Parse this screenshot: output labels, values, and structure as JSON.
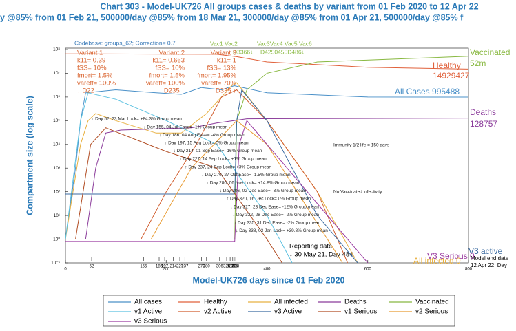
{
  "chart_data": {
    "type": "line",
    "title": "Chart 303 - Model-UK726 All groups cases & deaths by variant from 01 Feb 2020 to 12 Apr 22",
    "subtitle": "y @85% from 01 Feb 21, 500000/day @85% from 18 Mar 21, 300000/day @85% from 01 Apr 21, 500000/day @85% f",
    "x_label": "Model-UK726 days since 01 Feb 2020",
    "y_label": "Compartment size (log scale)",
    "log_y": true,
    "grid": false,
    "xlim": [
      0,
      800
    ],
    "xticks": [
      0,
      200,
      400,
      600,
      800
    ],
    "ylim": [
      0.1,
      100000000
    ],
    "yticks": [
      {
        "value": 0.1,
        "label": "10⁻¹"
      },
      {
        "value": 1,
        "label": "10⁰"
      },
      {
        "value": 10,
        "label": "10¹"
      },
      {
        "value": 100,
        "label": "10²"
      },
      {
        "value": 1000,
        "label": "10³"
      },
      {
        "value": 10000,
        "label": "10⁴"
      },
      {
        "value": 100000,
        "label": "10⁵"
      },
      {
        "value": 1000000,
        "label": "10⁶"
      },
      {
        "value": 10000000,
        "label": "10⁷"
      },
      {
        "value": 100000000,
        "label": "10⁸"
      }
    ],
    "codebase": "Codebase: groups_62; Correction= 0.7",
    "variants": [
      {
        "lines": [
          "Variant 1",
          "k11= 0.39",
          "fSS= 10%",
          "fmort= 1.5%",
          "vareff= 100%",
          "↓ D22"
        ]
      },
      {
        "lines": [
          "Variant 2",
          "k11= 0.663",
          "fSS= 10%",
          "fmort= 1.5%",
          "vareff= 100%",
          "D235 ↓"
        ]
      },
      {
        "lines": [
          "Variant 3",
          "k11= 1",
          "fSS= 13%",
          "fmort= 1.95%",
          "vareff= 70%",
          "D335 ↓"
        ]
      }
    ],
    "vaccine_labels": [
      "Vac1 Vac2",
      "Vac3Vac4 Vac5 Vac6"
    ],
    "vaccine_days": [
      "D3366↓",
      "D4250455D486↓"
    ],
    "events": [
      {
        "day": 52,
        "text": "↑ Day 52, 23 Mar Lock= +84.3% Group mean"
      },
      {
        "day": 155,
        "text": "↓ Day 155, 04 Jul Ease= -1% Group mean"
      },
      {
        "day": 186,
        "text": "↓ Day 186, 04 Aug Ease= -4% Group mean"
      },
      {
        "day": 197,
        "text": "↑ Day 197, 15 Aug Lock= 0% Group mean"
      },
      {
        "day": 214,
        "text": "↓ Day 214, 01 Sep Ease= -16% Group mean"
      },
      {
        "day": 227,
        "text": "↑ Day 227, 14 Sep Lock= +1% Group mean"
      },
      {
        "day": 237,
        "text": "↑ Day 237, 24 Sep Lock= +3% Group mean"
      },
      {
        "day": 270,
        "text": "↓ Day 270, 27 Oct Ease= -1.5% Group mean"
      },
      {
        "day": 280,
        "text": "↑ Day 280, 06 Nov Lock= +14.8% Group mean"
      },
      {
        "day": 306,
        "text": "↓ Day 306, 02 Dec Ease= -3% Group mean"
      },
      {
        "day": 320,
        "text": "↑ Day 320, 16 Dec Lock= 0% Group mean"
      },
      {
        "day": 327,
        "text": "↓ Day 327, 23 Dec Ease= -12% Group mean"
      },
      {
        "day": 332,
        "text": "↓ Day 332, 28 Dec Ease= -2% Group mean"
      },
      {
        "day": 335,
        "text": "↓ Day 335, 31 Dec Ease= -2% Group mean"
      },
      {
        "day": 338,
        "text": "↓ Day 338, 03 Jan Lock= +39.8% Group mean"
      }
    ],
    "notes": {
      "immunity": "Immunity 1/2 life = 150 days",
      "infectivity": "No Vaccinated infectivity",
      "reporting": "Reporting date",
      "reporting_day": "↓ 30 May 21, Day 484",
      "model_end": "Model end date",
      "model_end_day": "12 Apr 22, Day"
    },
    "end_labels": [
      {
        "name": "Vaccinated",
        "value": "52m",
        "color": "#88b840"
      },
      {
        "name": "Healthy",
        "value": "14929427",
        "color": "#e0603a"
      },
      {
        "name": "All Cases 995488",
        "color": "#4a90c8"
      },
      {
        "name": "Deaths",
        "value": "128757",
        "color": "#8a3a9a"
      },
      {
        "name": "V3 active",
        "color": "#3a6aa0"
      },
      {
        "name": "V3 Serious 0",
        "color": "#9a3aa0"
      },
      {
        "name": "All infected 0",
        "color": "#e8b040"
      }
    ],
    "series": [
      {
        "name": "All cases",
        "color": "#4a90c8",
        "x": [
          0,
          20,
          30,
          40,
          100,
          180,
          230,
          270,
          310,
          335,
          400,
          600,
          800
        ],
        "values": [
          1,
          1000,
          100000,
          1500000,
          2000000,
          1500000,
          1300000,
          2500000,
          2000000,
          3000000,
          1500000,
          1000000,
          995488
        ]
      },
      {
        "name": "Healthy",
        "color": "#e0603a",
        "x": [
          0,
          300,
          340,
          400,
          600,
          800
        ],
        "values": [
          66000000,
          63000000,
          50000000,
          30000000,
          18000000,
          14929427
        ]
      },
      {
        "name": "All infected",
        "color": "#e8b040",
        "x": [
          0,
          30,
          45,
          60,
          100,
          180,
          230,
          280,
          330,
          340,
          400,
          500,
          580
        ],
        "values": [
          1,
          10000,
          100000,
          200000,
          100000,
          30000,
          30000,
          200000,
          3000000,
          4000000,
          100000,
          100,
          0.1
        ]
      },
      {
        "name": "Deaths",
        "color": "#8a3a9a",
        "x": [
          40,
          60,
          80,
          110,
          250,
          300,
          360,
          800
        ],
        "values": [
          1,
          1000,
          30000,
          40000,
          50000,
          80000,
          120000,
          128757
        ]
      },
      {
        "name": "Vaccinated",
        "color": "#88b840",
        "x": [
          336,
          340,
          360,
          400,
          500,
          800
        ],
        "values": [
          1,
          100000,
          2000000,
          10000000,
          30000000,
          52000000
        ]
      },
      {
        "name": "v1 Active",
        "color": "#5ac0e0",
        "x": [
          0,
          30,
          45,
          100,
          200,
          300,
          400,
          450
        ],
        "values": [
          1,
          100000,
          1500000,
          800000,
          100000,
          10000,
          10,
          0.1
        ]
      },
      {
        "name": "v2 Active",
        "color": "#d05a2a",
        "x": [
          150,
          200,
          260,
          310,
          340,
          400,
          500,
          560
        ],
        "values": [
          1,
          100,
          10000,
          1000000,
          2000000,
          100000,
          100,
          0.1
        ]
      },
      {
        "name": "v3 Active",
        "color": "#3a6aa0",
        "x": [
          0,
          336,
          340,
          350,
          400,
          500,
          580
        ],
        "values": [
          80,
          80,
          100000,
          2000000,
          100000,
          10,
          0.1
        ]
      },
      {
        "name": "v1 Serious",
        "color": "#b04a20",
        "x": [
          20,
          50,
          80,
          200,
          300,
          400,
          430
        ],
        "values": [
          1,
          10000,
          50000,
          5000,
          1000,
          1,
          0.1
        ]
      },
      {
        "name": "v2 Serious",
        "color": "#e89a30",
        "x": [
          170,
          250,
          340,
          400,
          550
        ],
        "values": [
          1,
          1000,
          100000,
          10000,
          0.1
        ]
      },
      {
        "name": "v3 Serious",
        "color": "#9a3aa0",
        "x": [
          0,
          336,
          345,
          360,
          400,
          600
        ],
        "values": [
          0.8,
          0.8,
          10000,
          100000,
          10000,
          0.1
        ]
      }
    ]
  }
}
